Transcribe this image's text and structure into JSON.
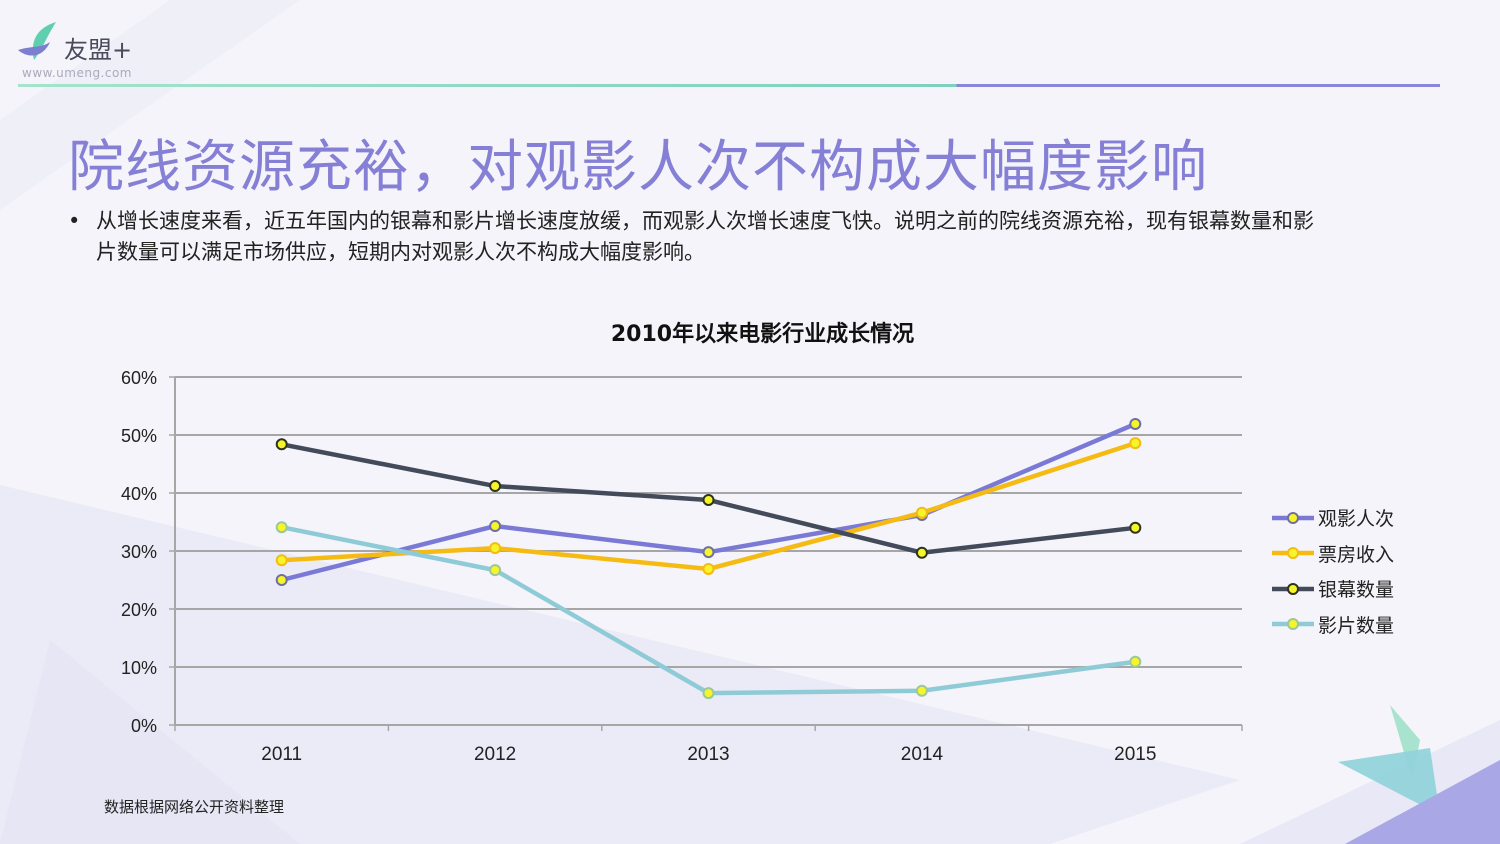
{
  "logo": {
    "name": "友盟+",
    "url": "www.umeng.com"
  },
  "title": "院线资源充裕，对观影人次不构成大幅度影响",
  "bullet": "从增长速度来看，近五年国内的银幕和影片增长速度放缓，而观影人次增长速度飞快。说明之前的院线资源充裕，现有银幕数量和影片数量可以满足市场供应，短期内对观影人次不构成大幅度影响。",
  "source": "数据根据网络公开资料整理",
  "chart_data": {
    "type": "line",
    "title": "2010年以来电影行业成长情况",
    "categories": [
      "2011",
      "2012",
      "2013",
      "2014",
      "2015"
    ],
    "ylim": [
      0,
      60
    ],
    "yticks": [
      0,
      10,
      20,
      30,
      40,
      50,
      60
    ],
    "ytick_labels": [
      "0%",
      "10%",
      "20%",
      "30%",
      "40%",
      "50%",
      "60%"
    ],
    "grid": true,
    "legend_position": "right",
    "series": [
      {
        "name": "观影人次",
        "color": "#7b79d6",
        "marker_edge": "#6f6fa0",
        "values": [
          25.0,
          34.3,
          29.8,
          36.2,
          51.9
        ]
      },
      {
        "name": "票房收入",
        "color": "#f5bb12",
        "marker_edge": "#f5bb12",
        "values": [
          28.4,
          30.5,
          26.9,
          36.6,
          48.6
        ]
      },
      {
        "name": "银幕数量",
        "color": "#434a5a",
        "marker_edge": "#2e3320",
        "values": [
          48.4,
          41.2,
          38.8,
          29.7,
          34.0
        ]
      },
      {
        "name": "影片数量",
        "color": "#8fcbd6",
        "marker_edge": "#9cc79c",
        "values": [
          34.1,
          26.7,
          5.5,
          5.9,
          10.9
        ]
      }
    ]
  }
}
